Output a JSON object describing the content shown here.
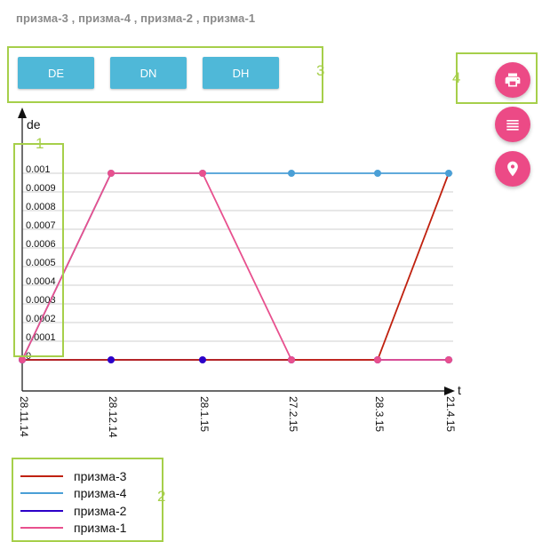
{
  "header": {
    "subtitle": "призма-3 , призма-4 , призма-2 , призма-1"
  },
  "toolbar": {
    "buttons": [
      "DE",
      "DN",
      "DH"
    ]
  },
  "annotations": {
    "y_axis_box": "1",
    "legend_box": "2",
    "tabs_box": "3",
    "actions_box": "4"
  },
  "actions": [
    {
      "icon": "print-icon"
    },
    {
      "icon": "list-icon"
    },
    {
      "icon": "location-pin-icon"
    }
  ],
  "colors": {
    "accent": "#a6cf4a",
    "button": "#4fb8d8",
    "fab": "#ec4a86"
  },
  "chart_data": {
    "type": "line",
    "ylabel": "de",
    "xlabel": "t",
    "ylim": [
      0,
      0.001
    ],
    "yticks": [
      "0",
      "0.0001",
      "0.0002",
      "0.0003",
      "0.0004",
      "0.0005",
      "0.0006",
      "0.0007",
      "0.0008",
      "0.0009",
      "0.001"
    ],
    "categories": [
      "28.11.14",
      "28.12.14",
      "28.1.15",
      "27.2.15",
      "28.3.15",
      "21.4.15"
    ],
    "grid": true,
    "legend_position": "bottom-left",
    "series": [
      {
        "name": "призма-3",
        "color": "#c0210f",
        "markers": false,
        "values": [
          0,
          0,
          0,
          0,
          0,
          0.001
        ]
      },
      {
        "name": "призма-4",
        "color": "#4a9fd6",
        "markers": true,
        "values": [
          0,
          0.001,
          0.001,
          0.001,
          0.001,
          0.001
        ]
      },
      {
        "name": "призма-2",
        "color": "#2c00c8",
        "markers": true,
        "values": [
          0,
          0,
          0,
          0,
          0,
          0
        ]
      },
      {
        "name": "призма-1",
        "color": "#e8508e",
        "markers": true,
        "values": [
          0,
          0.001,
          0.001,
          0,
          0,
          0
        ]
      }
    ]
  }
}
